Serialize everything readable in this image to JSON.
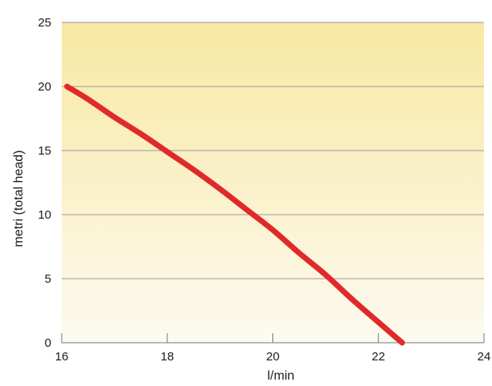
{
  "chart_data": {
    "type": "line",
    "title": "",
    "xlabel": "l/min",
    "ylabel": "metri (total head)",
    "xlim": [
      16,
      24
    ],
    "ylim": [
      0,
      25
    ],
    "x_ticks": [
      16,
      18,
      20,
      22,
      24
    ],
    "y_ticks": [
      0,
      5,
      10,
      15,
      20,
      25
    ],
    "grid": "horizontal",
    "legend": "none",
    "series": [
      {
        "color": "#e02a2a",
        "x": [
          16.1,
          16.5,
          17.0,
          17.5,
          18.0,
          18.5,
          19.0,
          19.5,
          20.0,
          20.5,
          21.0,
          21.5,
          22.0,
          22.45
        ],
        "y": [
          20.0,
          19.0,
          17.6,
          16.3,
          14.9,
          13.5,
          12.0,
          10.4,
          8.8,
          7.0,
          5.3,
          3.4,
          1.6,
          0.0
        ]
      }
    ],
    "colors": {
      "background_top": "#f8e8a3",
      "background_bottom": "#fdfaf0",
      "gridline": "#999999",
      "axis": "#777777"
    }
  }
}
